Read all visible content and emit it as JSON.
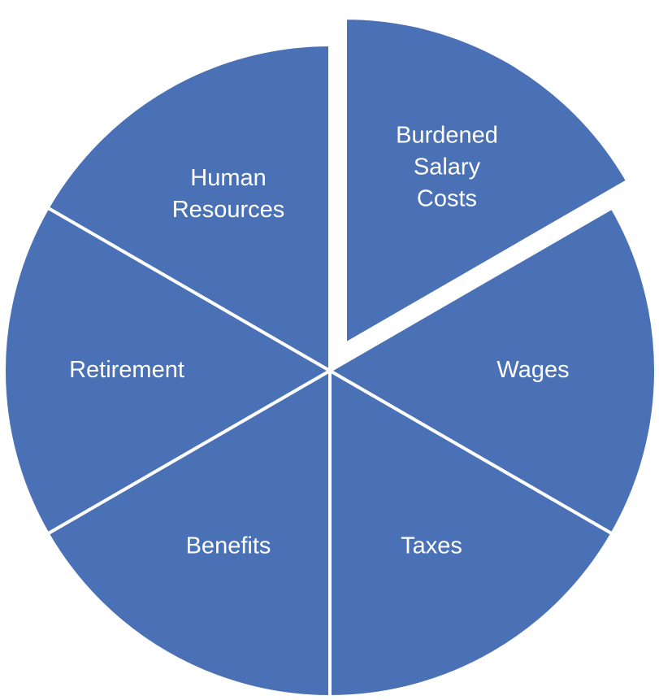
{
  "colors": {
    "slice_fill": "#4a70b5",
    "divider": "#ffffff",
    "background": "#ffffff"
  },
  "diagram": {
    "type": "exploded-pie",
    "segments": [
      {
        "id": "burdened-salary-costs",
        "lines": [
          "Burdened",
          "Salary",
          "Costs"
        ],
        "exploded": true
      },
      {
        "id": "wages",
        "lines": [
          "Wages"
        ],
        "exploded": false
      },
      {
        "id": "taxes",
        "lines": [
          "Taxes"
        ],
        "exploded": false
      },
      {
        "id": "benefits",
        "lines": [
          "Benefits"
        ],
        "exploded": false
      },
      {
        "id": "retirement",
        "lines": [
          "Retirement"
        ],
        "exploded": false
      },
      {
        "id": "human-resources",
        "lines": [
          "Human",
          "Resources"
        ],
        "exploded": false
      }
    ]
  }
}
